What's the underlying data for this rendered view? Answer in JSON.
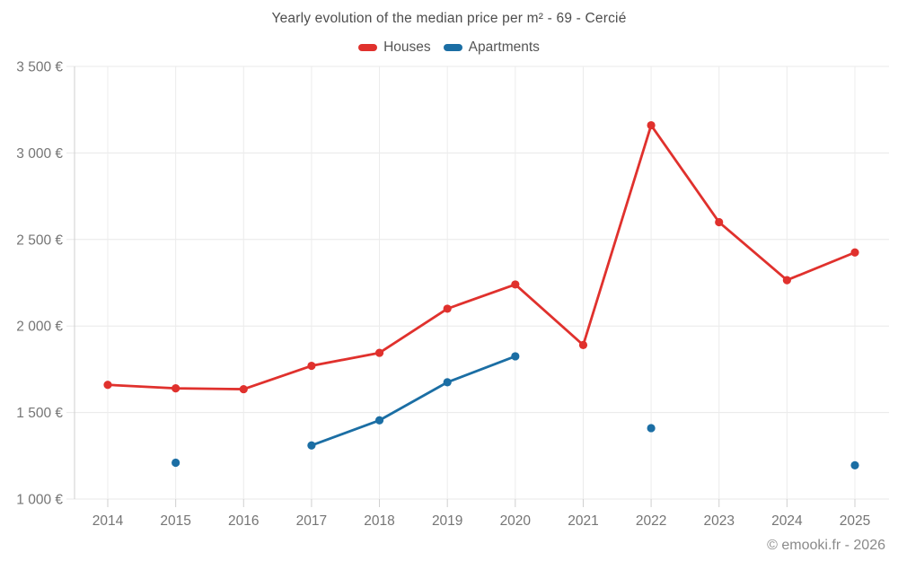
{
  "header": {
    "title": "Yearly evolution of the median price per m² - 69 - Cercié"
  },
  "footer": {
    "text": "© emooki.fr - 2026"
  },
  "colors": {
    "houses": "#e0312d",
    "apartments": "#1b6ea4",
    "grid_horizontal": "#e8e8e8",
    "grid_vertical": "#ececec",
    "axis": "#cfcfcf",
    "axis_text": "#757575",
    "title_text": "#4d4d4d",
    "footer_text": "#8a8a8a"
  },
  "chart_data": {
    "type": "line",
    "title": "Yearly evolution of the median price per m² - 69 - Cercié",
    "x": [
      2014,
      2015,
      2016,
      2017,
      2018,
      2019,
      2020,
      2021,
      2022,
      2023,
      2024,
      2025
    ],
    "series": [
      {
        "name": "Houses",
        "color": "#e0312d",
        "values": [
          1660,
          1640,
          1635,
          1770,
          1845,
          2100,
          2240,
          1890,
          3160,
          2600,
          2265,
          2425
        ]
      },
      {
        "name": "Apartments",
        "color": "#1b6ea4",
        "values": [
          null,
          1210,
          null,
          1310,
          1455,
          1675,
          1825,
          null,
          1410,
          null,
          null,
          1195
        ]
      }
    ],
    "ylim": [
      1000,
      3500
    ],
    "ytick_step": 500,
    "yticks": [
      {
        "value": 1000,
        "label": "1 000 €"
      },
      {
        "value": 1500,
        "label": "1 500 €"
      },
      {
        "value": 2000,
        "label": "2 000 €"
      },
      {
        "value": 2500,
        "label": "2 500 €"
      },
      {
        "value": 3000,
        "label": "3 000 €"
      },
      {
        "value": 3500,
        "label": "3 500 €"
      }
    ],
    "grid": true,
    "legend_position": "top",
    "ylabel": "",
    "xlabel": ""
  }
}
